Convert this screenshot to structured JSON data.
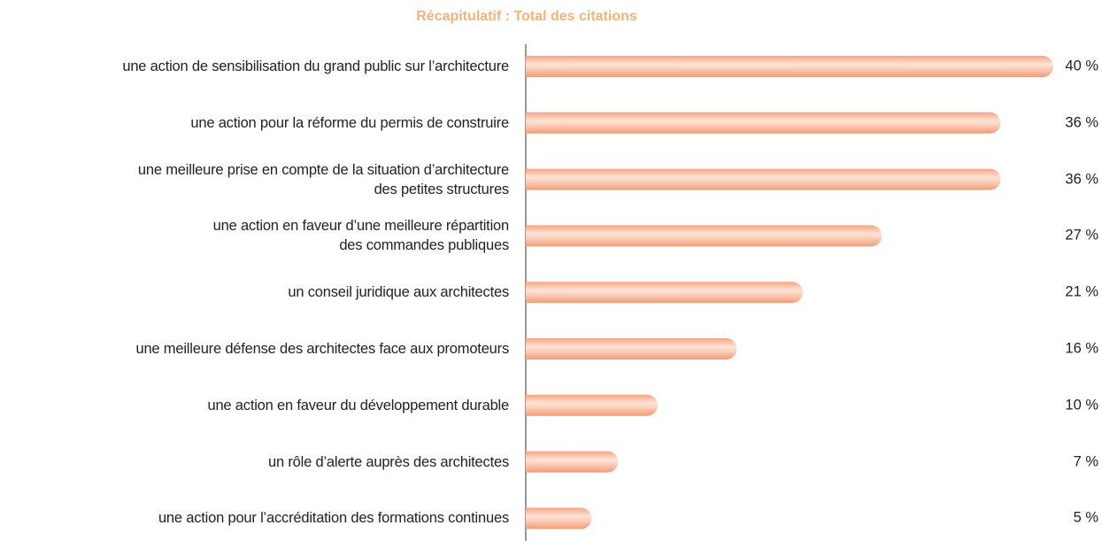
{
  "chart_data": {
    "type": "bar",
    "orientation": "horizontal",
    "title": "Récapitulatif : Total des citations",
    "categories": [
      "une action de sensibilisation du grand public sur l’architecture",
      "une action pour la réforme du permis de construire",
      "une meilleure prise en compte de la situation d’architecture\ndes petites structures",
      "une action en faveur d’une meilleure répartition\ndes commandes publiques",
      "un conseil juridique aux architectes",
      "une meilleure défense des architectes face aux promoteurs",
      "une action en faveur du développement durable",
      "un rôle d’alerte auprès des architectes",
      "une action pour l’accréditation des formations continues"
    ],
    "values": [
      40,
      36,
      36,
      27,
      21,
      16,
      10,
      7,
      5
    ],
    "value_labels": [
      "40 %",
      "36 %",
      "36 %",
      "27 %",
      "21 %",
      "16 %",
      "10 %",
      "7 %",
      "5 %"
    ],
    "color": "#f8ae8c"
  }
}
